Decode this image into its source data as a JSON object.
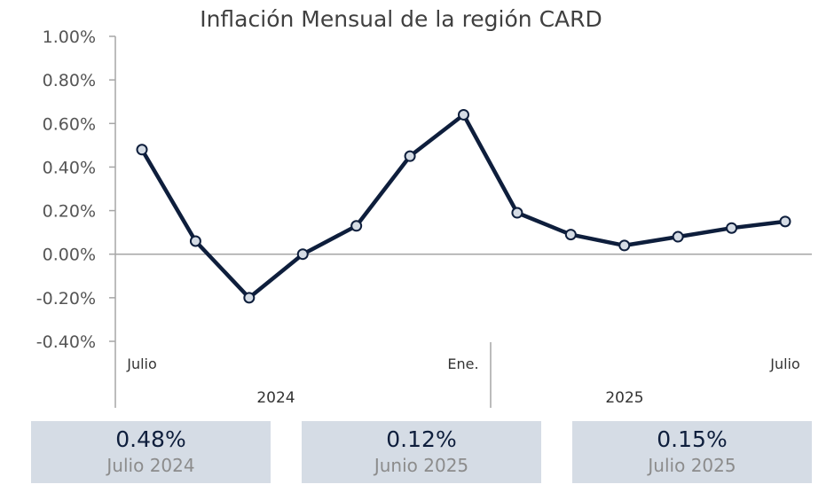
{
  "chart_data": {
    "type": "line",
    "title": "Inflación Mensual de la región CARD",
    "xlabel": "",
    "ylabel": "",
    "ylim": [
      -0.4,
      1.0
    ],
    "y_ticks": [
      "1.00%",
      "0.80%",
      "0.60%",
      "0.40%",
      "0.20%",
      "0.00%",
      "-0.20%",
      "-0.40%"
    ],
    "y_tick_values": [
      1.0,
      0.8,
      0.6,
      0.4,
      0.2,
      0.0,
      -0.2,
      -0.4
    ],
    "x": [
      "2024-07",
      "2024-08",
      "2024-09",
      "2024-10",
      "2024-11",
      "2024-12",
      "2025-01",
      "2025-02",
      "2025-03",
      "2025-04",
      "2025-05",
      "2025-06",
      "2025-07"
    ],
    "x_tick_labels": [
      {
        "index": 0,
        "label": "Julio"
      },
      {
        "index": 6,
        "label": "Ene."
      },
      {
        "index": 12,
        "label": "Julio"
      }
    ],
    "years": [
      {
        "label": "2024",
        "from": 0,
        "to": 6
      },
      {
        "label": "2025",
        "from": 6,
        "to": 12
      }
    ],
    "series": [
      {
        "values": [
          0.48,
          0.06,
          -0.2,
          0.0,
          0.13,
          0.45,
          0.64,
          0.19,
          0.09,
          0.04,
          0.08,
          0.12,
          0.15
        ]
      }
    ],
    "grid": false,
    "legend": "none",
    "colors": {
      "line": "#0e1e3c",
      "marker_fill": "#d5dce5",
      "axis": "#a6a6a6"
    }
  },
  "cards": [
    {
      "value": "0.48%",
      "label": "Julio 2024"
    },
    {
      "value": "0.12%",
      "label": "Junio 2025"
    },
    {
      "value": "0.15%",
      "label": "Julio 2025"
    }
  ]
}
